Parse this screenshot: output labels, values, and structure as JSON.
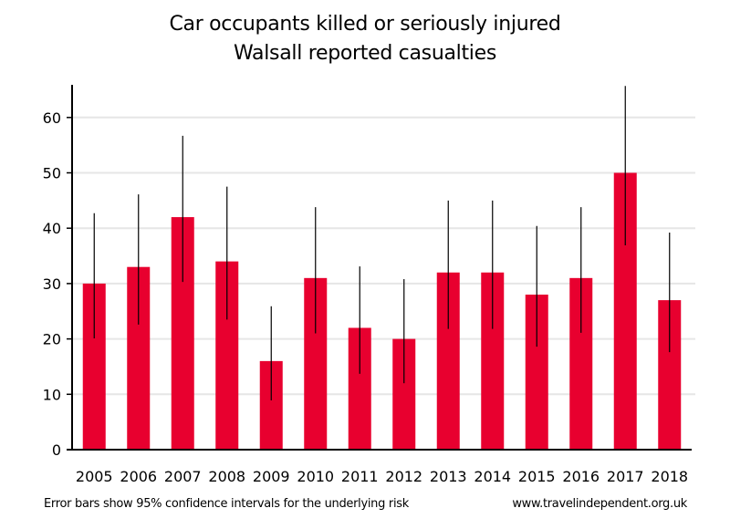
{
  "chart_data": {
    "type": "bar",
    "title": "Car occupants killed or seriously injured",
    "subtitle": "Walsall reported casualties",
    "xlabel": "",
    "ylabel": "",
    "categories": [
      "2005",
      "2006",
      "2007",
      "2008",
      "2009",
      "2010",
      "2011",
      "2012",
      "2013",
      "2014",
      "2015",
      "2016",
      "2017",
      "2018"
    ],
    "series": [
      {
        "name": "Killed or seriously injured",
        "values": [
          30,
          33,
          42,
          34,
          16,
          31,
          22,
          20,
          32,
          32,
          28,
          31,
          50,
          27
        ],
        "error_lower": [
          20.1,
          22.6,
          30.3,
          23.5,
          8.9,
          21.0,
          13.7,
          12.0,
          21.8,
          21.8,
          18.6,
          21.1,
          36.9,
          17.6
        ],
        "error_upper": [
          42.7,
          46.1,
          56.7,
          47.5,
          25.9,
          43.8,
          33.1,
          30.8,
          45.0,
          45.0,
          40.4,
          43.8,
          65.7,
          39.2
        ],
        "color": "#e8002f"
      }
    ],
    "ylim": [
      0,
      66
    ],
    "yticks": [
      0,
      10,
      20,
      30,
      40,
      50,
      60
    ],
    "grid": true,
    "legend": "none",
    "annotations": {
      "footnote": "Error bars show 95% confidence intervals for the underlying risk",
      "source": "www.travelindependent.org.uk"
    }
  },
  "colors": {
    "bar": "#e8002f",
    "grid": "#e6e6e6",
    "axis": "#000000",
    "error_bar": "#000000"
  }
}
